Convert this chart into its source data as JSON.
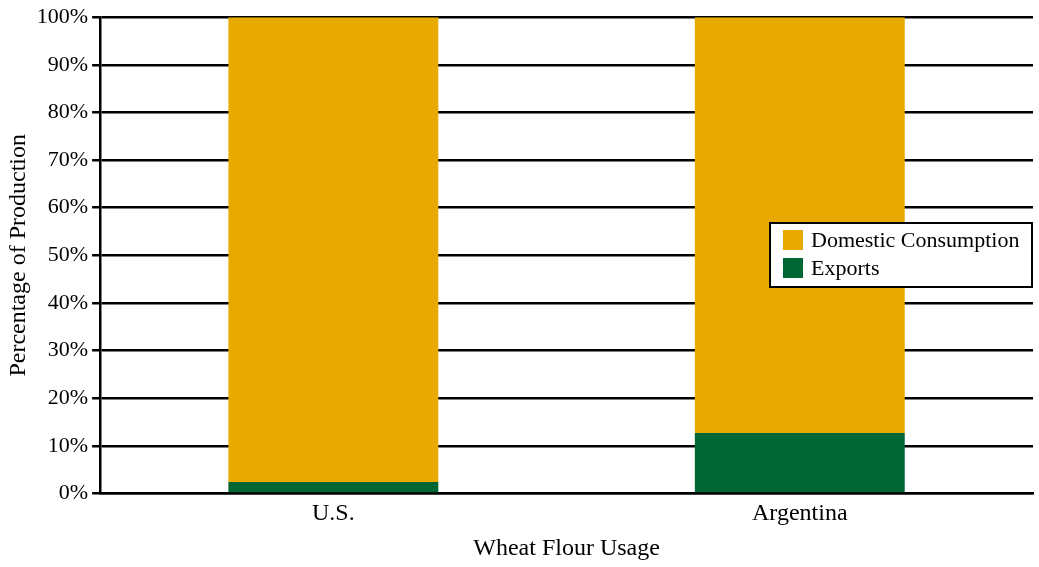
{
  "chart_data": {
    "type": "bar",
    "xlabel": "Wheat Flour Usage",
    "ylabel": "Percentage of Production",
    "categories": [
      "U.S.",
      "Argentina"
    ],
    "stacked": true,
    "series": [
      {
        "name": "Exports",
        "color": "#006633",
        "values": [
          2.4,
          12.7
        ]
      },
      {
        "name": "Domestic Consumption",
        "color": "#e8a900",
        "values": [
          97.6,
          87.3
        ]
      }
    ],
    "ylim": [
      0,
      100
    ],
    "yticks": [
      {
        "value": 0,
        "label": "0%"
      },
      {
        "value": 10,
        "label": "10%"
      },
      {
        "value": 20,
        "label": "20%"
      },
      {
        "value": 30,
        "label": "30%"
      },
      {
        "value": 40,
        "label": "40%"
      },
      {
        "value": 50,
        "label": "50%"
      },
      {
        "value": 60,
        "label": "60%"
      },
      {
        "value": 70,
        "label": "70%"
      },
      {
        "value": 80,
        "label": "80%"
      },
      {
        "value": 90,
        "label": "90%"
      },
      {
        "value": 100,
        "label": "100%"
      }
    ],
    "grid": "y",
    "legend": "right"
  }
}
